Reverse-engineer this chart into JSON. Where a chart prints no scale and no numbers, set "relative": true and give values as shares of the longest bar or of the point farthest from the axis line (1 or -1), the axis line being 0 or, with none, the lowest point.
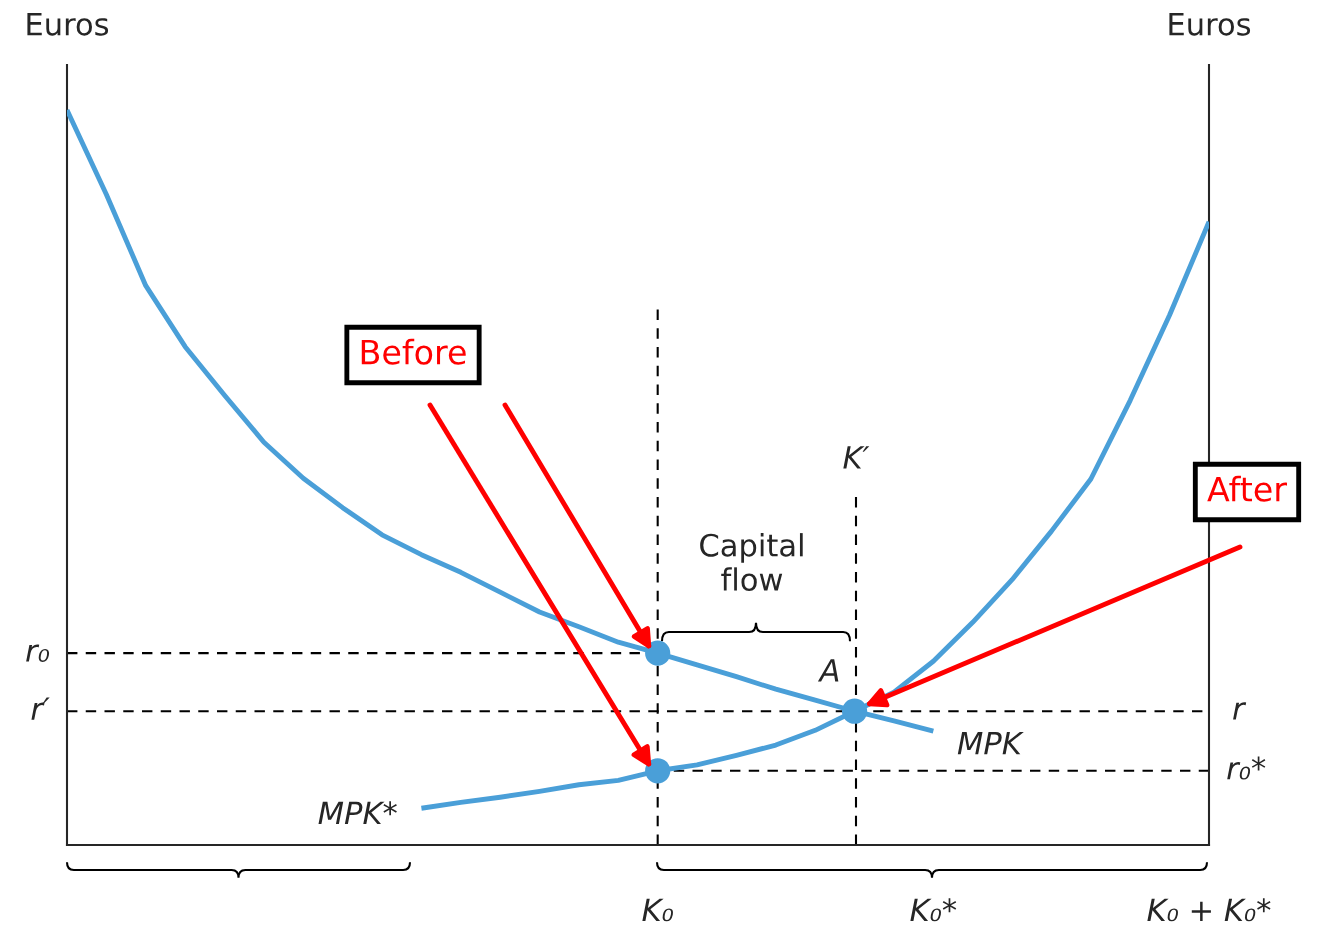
{
  "chart_data": {
    "type": "line",
    "relative": true,
    "ylabel": "Euros",
    "y2label": "Euros",
    "categories": [
      null,
      null,
      null,
      null,
      null,
      null,
      null,
      null,
      null,
      null,
      null,
      null,
      null,
      null,
      null,
      "K₀",
      null,
      null,
      null,
      null,
      null,
      null,
      "K₀*",
      null,
      null,
      null,
      null,
      null,
      null,
      "K₀ + K₀*"
    ],
    "series": [
      {
        "name": "MPK",
        "color": "#4a9fd8",
        "values": [
          1.0,
          0.885,
          0.761,
          0.678,
          0.612,
          0.548,
          0.499,
          0.459,
          0.422,
          0.395,
          0.371,
          0.344,
          0.317,
          0.297,
          0.276,
          0.261,
          0.245,
          0.229,
          0.212,
          0.197,
          0.182,
          0.169,
          0.155,
          null,
          null,
          null,
          null,
          null,
          null,
          null
        ]
      },
      {
        "name": "MPK*",
        "color": "#4a9fd8",
        "values": [
          null,
          null,
          null,
          null,
          null,
          null,
          null,
          null,
          null,
          0.05,
          0.058,
          0.065,
          0.073,
          0.082,
          0.088,
          0.101,
          0.109,
          0.122,
          0.136,
          0.156,
          0.182,
          0.208,
          0.25,
          0.303,
          0.361,
          0.427,
          0.498,
          0.605,
          0.721,
          0.848
        ]
      },
      {
        "type": "scatter",
        "marker": "circle",
        "color": "#4a9fd8",
        "values": [
          null,
          null,
          null,
          null,
          null,
          null,
          null,
          null,
          null,
          null,
          null,
          null,
          null,
          null,
          null,
          0.261,
          null,
          null,
          null,
          null,
          0.182,
          null,
          null,
          null,
          null,
          null,
          null,
          null,
          null,
          null
        ]
      },
      {
        "type": "scatter",
        "marker": "circle",
        "color": "#4a9fd8",
        "values": [
          null,
          null,
          null,
          null,
          null,
          null,
          null,
          null,
          null,
          null,
          null,
          null,
          null,
          null,
          null,
          0.101,
          null,
          null,
          null,
          null,
          null,
          null,
          null,
          null,
          null,
          null,
          null,
          null,
          null,
          null
        ]
      }
    ],
    "ref_lines": [
      {
        "axis": "x",
        "value": "K₀",
        "line_style": "dashed",
        "color": "#000000"
      },
      {
        "axis": "y",
        "value": 0.261,
        "label": "r₀",
        "line_style": "dashed",
        "color": "#000000"
      },
      {
        "axis": "y",
        "value": 0.182,
        "label": "r′",
        "line_style": "dashed",
        "color": "#000000"
      },
      {
        "axis": "y",
        "value": 0.101,
        "label": "r₀*",
        "line_style": "dashed",
        "color": "#000000"
      }
    ],
    "annotations": [
      "Before",
      "After",
      "A",
      "Capital flow",
      "r",
      "K′"
    ],
    "grid": false,
    "legend": false,
    "line_style": "solid",
    "marker": "none"
  }
}
